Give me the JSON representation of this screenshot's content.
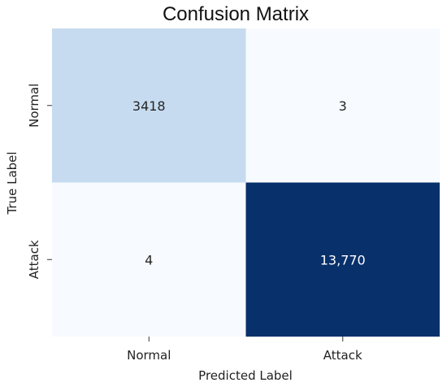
{
  "chart_data": {
    "type": "heatmap",
    "title": "Confusion Matrix",
    "xlabel": "Predicted Label",
    "ylabel": "True Label",
    "x_categories": [
      "Normal",
      "Attack"
    ],
    "y_categories": [
      "Normal",
      "Attack"
    ],
    "values": [
      [
        3418,
        3
      ],
      [
        4,
        13770
      ]
    ],
    "annotations": [
      [
        "3418",
        "3"
      ],
      [
        "4",
        "13,770"
      ]
    ],
    "colormap": "Blues",
    "colorbar": false,
    "colors": {
      "low": "#f7fbff",
      "high": "#08306b",
      "text_dark": "#262626",
      "text_light": "#ffffff"
    }
  }
}
